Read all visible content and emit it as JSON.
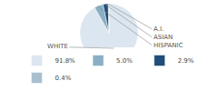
{
  "chart_data": {
    "type": "pie",
    "categories": [
      "WHITE",
      "HISPANIC",
      "ASIAN",
      "A.I."
    ],
    "values": [
      91.8,
      5.0,
      2.9,
      0.4
    ],
    "value_labels": [
      "91.8%",
      "5.0%",
      "2.9%",
      "0.4%"
    ],
    "colors": [
      "#dce6f0",
      "#8aafc4",
      "#1f4e79",
      "#a9bfcf"
    ],
    "legend": "bottom"
  }
}
